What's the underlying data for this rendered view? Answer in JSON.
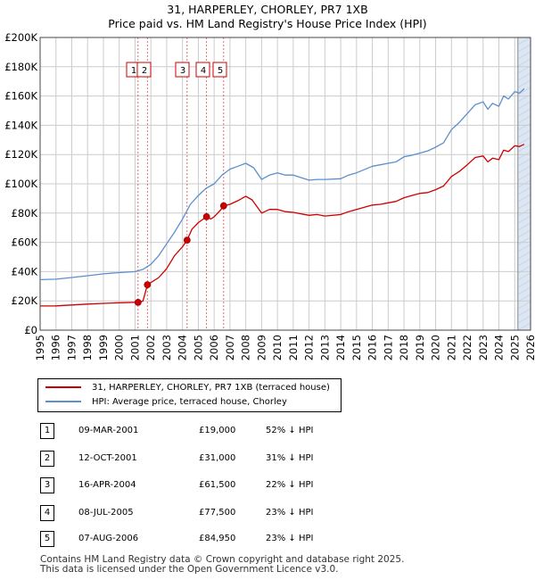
{
  "title_line1": "31, HARPERLEY, CHORLEY, PR7 1XB",
  "title_line2": "Price paid vs. HM Land Registry's House Price Index (HPI)",
  "colors": {
    "property": "#cc0000",
    "hpi": "#5b8fcc",
    "grid": "#cccccc",
    "band": "#dde6f3",
    "event_line": "#cc0000"
  },
  "legend": {
    "property_label": "31, HARPERLEY, CHORLEY, PR7 1XB (terraced house)",
    "hpi_label": "HPI: Average price, terraced house, Chorley"
  },
  "transactions": [
    {
      "num": "1",
      "date": "09-MAR-2001",
      "price": "£19,000",
      "hpi": "52% ↓ HPI"
    },
    {
      "num": "2",
      "date": "12-OCT-2001",
      "price": "£31,000",
      "hpi": "31% ↓ HPI"
    },
    {
      "num": "3",
      "date": "16-APR-2004",
      "price": "£61,500",
      "hpi": "22% ↓ HPI"
    },
    {
      "num": "4",
      "date": "08-JUL-2005",
      "price": "£77,500",
      "hpi": "23% ↓ HPI"
    },
    {
      "num": "5",
      "date": "07-AUG-2006",
      "price": "£84,950",
      "hpi": "23% ↓ HPI"
    }
  ],
  "footer_line1": "Contains HM Land Registry data © Crown copyright and database right 2025.",
  "footer_line2": "This data is licensed under the Open Government Licence v3.0.",
  "chart_data": {
    "type": "line",
    "title": "31, HARPERLEY, CHORLEY, PR7 1XB",
    "subtitle": "Price paid vs. HM Land Registry's House Price Index (HPI)",
    "xlabel": "",
    "ylabel": "",
    "xlim": [
      1995,
      2026
    ],
    "ylim": [
      0,
      200000
    ],
    "x_ticks": [
      1995,
      1996,
      1997,
      1998,
      1999,
      2000,
      2001,
      2002,
      2003,
      2004,
      2005,
      2006,
      2007,
      2008,
      2009,
      2010,
      2011,
      2012,
      2013,
      2014,
      2015,
      2016,
      2017,
      2018,
      2019,
      2020,
      2021,
      2022,
      2023,
      2024,
      2025,
      2026
    ],
    "y_ticks": [
      0,
      20000,
      40000,
      60000,
      80000,
      100000,
      120000,
      140000,
      160000,
      180000,
      200000
    ],
    "y_tick_labels": [
      "£0",
      "£20K",
      "£40K",
      "£60K",
      "£80K",
      "£100K",
      "£120K",
      "£140K",
      "£160K",
      "£180K",
      "£200K"
    ],
    "grid": true,
    "shaded_band": {
      "from": 2025.2,
      "to": 2026
    },
    "series": [
      {
        "name": "31, HARPERLEY, CHORLEY, PR7 1XB (terraced house)",
        "points": [
          [
            1995.0,
            16500
          ],
          [
            1996.0,
            16600
          ],
          [
            1997.0,
            17200
          ],
          [
            1998.0,
            17800
          ],
          [
            1999.0,
            18300
          ],
          [
            2000.0,
            18700
          ],
          [
            2001.0,
            19000
          ],
          [
            2001.19,
            19000
          ],
          [
            2001.2,
            19000
          ],
          [
            2001.5,
            19800
          ],
          [
            2001.78,
            31000
          ],
          [
            2002.0,
            32500
          ],
          [
            2002.5,
            36000
          ],
          [
            2003.0,
            42000
          ],
          [
            2003.5,
            51000
          ],
          [
            2004.0,
            57000
          ],
          [
            2004.29,
            61500
          ],
          [
            2004.6,
            69000
          ],
          [
            2005.0,
            73500
          ],
          [
            2005.52,
            77500
          ],
          [
            2005.8,
            76000
          ],
          [
            2006.0,
            77500
          ],
          [
            2006.4,
            82000
          ],
          [
            2006.6,
            84950
          ],
          [
            2007.0,
            86000
          ],
          [
            2007.5,
            88500
          ],
          [
            2008.0,
            91500
          ],
          [
            2008.4,
            89000
          ],
          [
            2009.0,
            80000
          ],
          [
            2009.5,
            82500
          ],
          [
            2010.0,
            82500
          ],
          [
            2010.5,
            81000
          ],
          [
            2011.0,
            80500
          ],
          [
            2012.0,
            78500
          ],
          [
            2012.5,
            79000
          ],
          [
            2013.0,
            78000
          ],
          [
            2014.0,
            79000
          ],
          [
            2014.5,
            81000
          ],
          [
            2015.0,
            82500
          ],
          [
            2016.0,
            85500
          ],
          [
            2016.5,
            86000
          ],
          [
            2017.0,
            87000
          ],
          [
            2017.5,
            88000
          ],
          [
            2018.0,
            90500
          ],
          [
            2018.5,
            92000
          ],
          [
            2019.0,
            93500
          ],
          [
            2019.5,
            94000
          ],
          [
            2020.0,
            96000
          ],
          [
            2020.5,
            98500
          ],
          [
            2021.0,
            105000
          ],
          [
            2021.5,
            108500
          ],
          [
            2022.0,
            113000
          ],
          [
            2022.5,
            118000
          ],
          [
            2023.0,
            119000
          ],
          [
            2023.3,
            115000
          ],
          [
            2023.6,
            117500
          ],
          [
            2024.0,
            116500
          ],
          [
            2024.3,
            123000
          ],
          [
            2024.6,
            122000
          ],
          [
            2025.0,
            126000
          ],
          [
            2025.3,
            125500
          ],
          [
            2025.6,
            127000
          ]
        ]
      },
      {
        "name": "HPI: Average price, terraced house, Chorley",
        "points": [
          [
            1995.0,
            34500
          ],
          [
            1996.0,
            34800
          ],
          [
            1997.0,
            36000
          ],
          [
            1998.0,
            37200
          ],
          [
            1999.0,
            38500
          ],
          [
            2000.0,
            39300
          ],
          [
            2001.0,
            40000
          ],
          [
            2001.5,
            41500
          ],
          [
            2002.0,
            45000
          ],
          [
            2002.5,
            51000
          ],
          [
            2003.0,
            59000
          ],
          [
            2003.5,
            67000
          ],
          [
            2004.0,
            76000
          ],
          [
            2004.5,
            86000
          ],
          [
            2005.0,
            92000
          ],
          [
            2005.5,
            97000
          ],
          [
            2006.0,
            100000
          ],
          [
            2006.5,
            106000
          ],
          [
            2007.0,
            110000
          ],
          [
            2007.5,
            112000
          ],
          [
            2008.0,
            114000
          ],
          [
            2008.5,
            111000
          ],
          [
            2009.0,
            103000
          ],
          [
            2009.5,
            106000
          ],
          [
            2010.0,
            107500
          ],
          [
            2010.5,
            106000
          ],
          [
            2011.0,
            106000
          ],
          [
            2012.0,
            102500
          ],
          [
            2012.5,
            103000
          ],
          [
            2013.0,
            103000
          ],
          [
            2014.0,
            103500
          ],
          [
            2014.5,
            106000
          ],
          [
            2015.0,
            107500
          ],
          [
            2016.0,
            112000
          ],
          [
            2016.5,
            113000
          ],
          [
            2017.0,
            114000
          ],
          [
            2017.5,
            115000
          ],
          [
            2018.0,
            118500
          ],
          [
            2018.5,
            119500
          ],
          [
            2019.0,
            121000
          ],
          [
            2019.5,
            122500
          ],
          [
            2020.0,
            125000
          ],
          [
            2020.5,
            128000
          ],
          [
            2021.0,
            137000
          ],
          [
            2021.5,
            142000
          ],
          [
            2022.0,
            148000
          ],
          [
            2022.5,
            154000
          ],
          [
            2023.0,
            156000
          ],
          [
            2023.3,
            151000
          ],
          [
            2023.6,
            155000
          ],
          [
            2024.0,
            153000
          ],
          [
            2024.3,
            160000
          ],
          [
            2024.6,
            158000
          ],
          [
            2025.0,
            163000
          ],
          [
            2025.3,
            162000
          ],
          [
            2025.6,
            165000
          ]
        ]
      }
    ],
    "sales": [
      {
        "num": "1",
        "x": 2001.19,
        "y": 19000
      },
      {
        "num": "2",
        "x": 2001.78,
        "y": 31000
      },
      {
        "num": "3",
        "x": 2004.29,
        "y": 61500
      },
      {
        "num": "4",
        "x": 2005.52,
        "y": 77500
      },
      {
        "num": "5",
        "x": 2006.6,
        "y": 84950
      }
    ]
  }
}
